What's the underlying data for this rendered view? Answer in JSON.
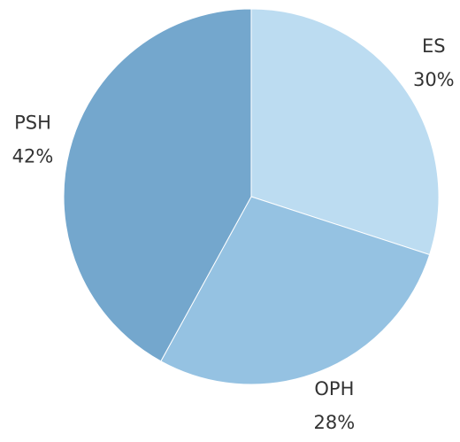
{
  "chart_data": {
    "type": "pie",
    "categories": [
      "ES",
      "OPH",
      "PSH"
    ],
    "values": [
      30,
      28,
      42
    ],
    "value_labels": [
      "30%",
      "28%",
      "42%"
    ],
    "colors": [
      "#bcdcf1",
      "#95c2e2",
      "#74a7cd"
    ]
  }
}
